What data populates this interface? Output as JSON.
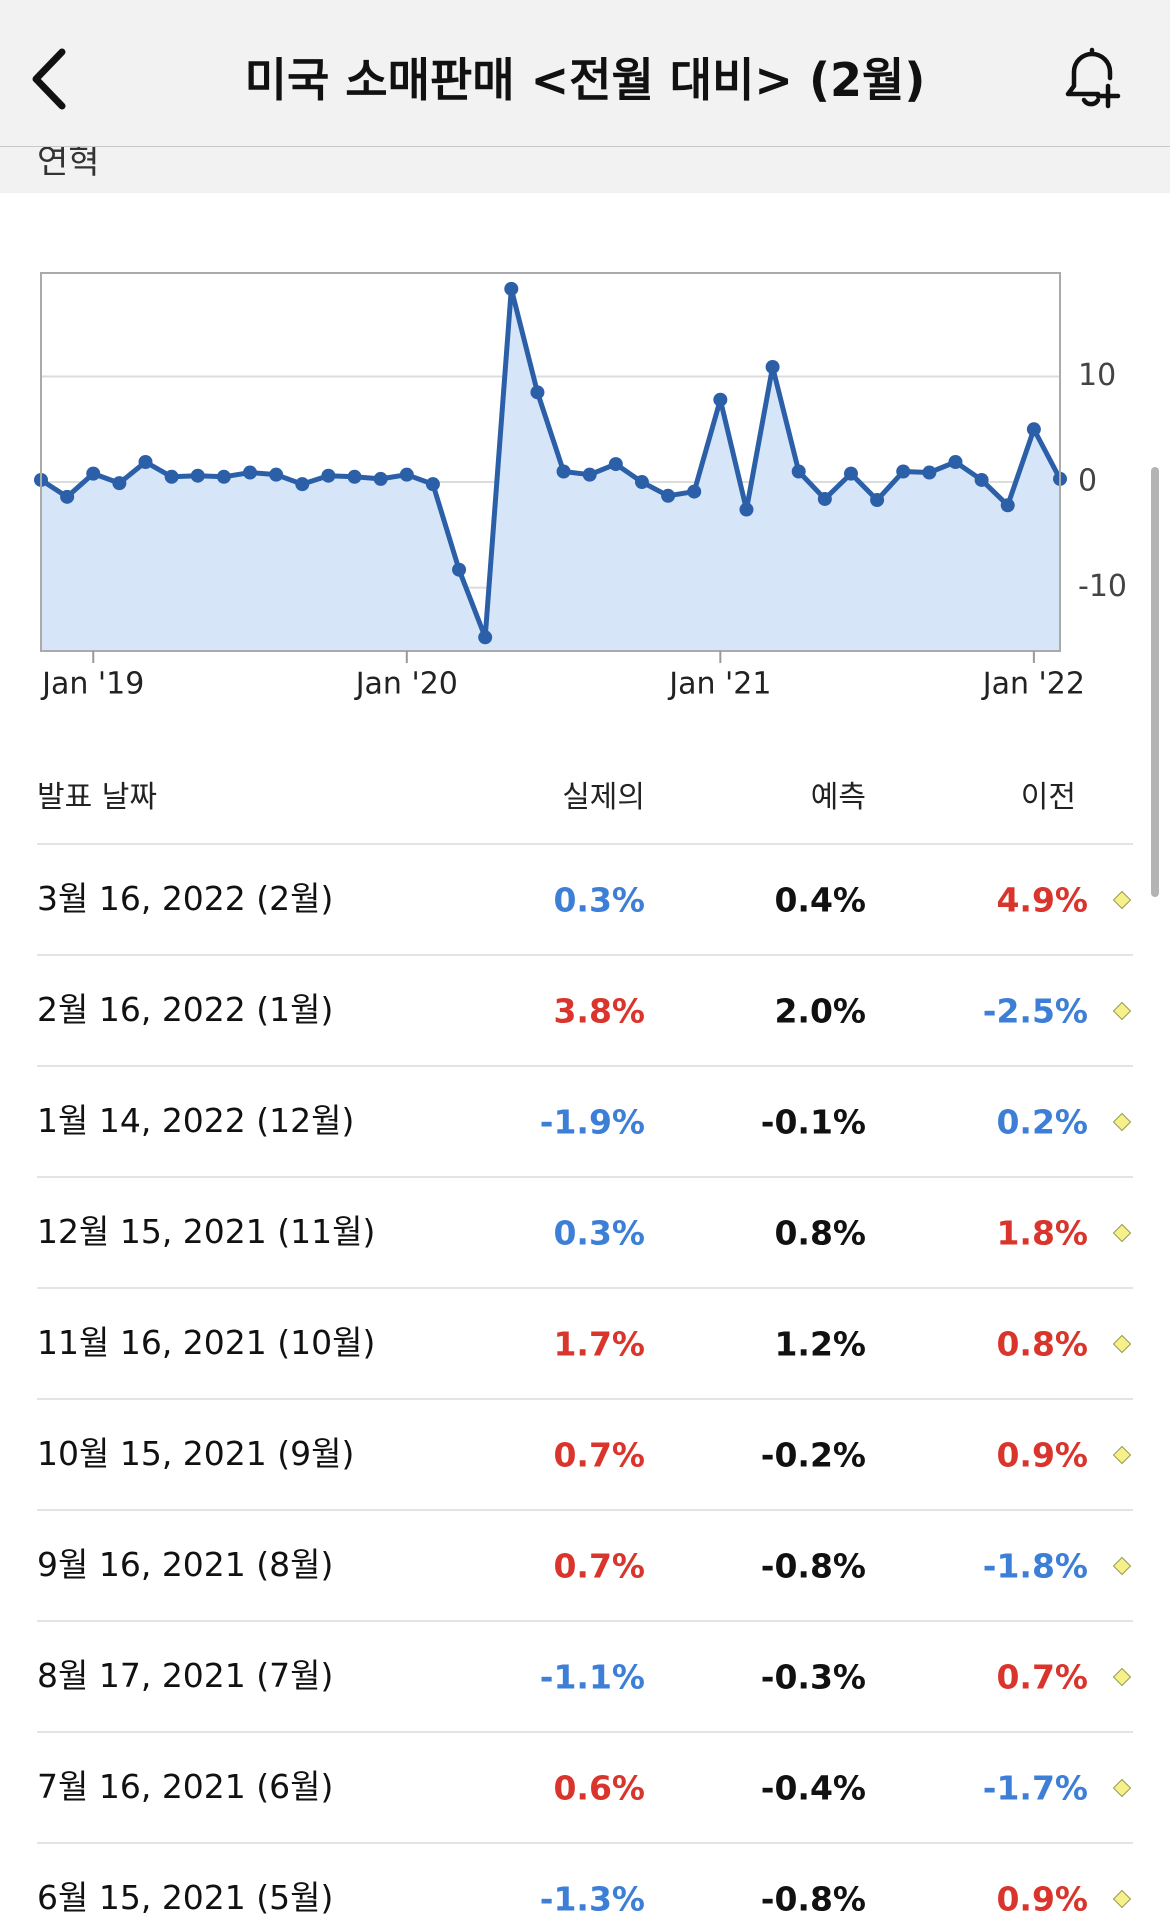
{
  "header": {
    "title": "미국 소매판매 <전월 대비> (2월)"
  },
  "section": {
    "title": "연혁"
  },
  "chart_data": {
    "type": "line",
    "x": [
      "2018-11",
      "2018-12",
      "2019-01",
      "2019-02",
      "2019-03",
      "2019-04",
      "2019-05",
      "2019-06",
      "2019-07",
      "2019-08",
      "2019-09",
      "2019-10",
      "2019-11",
      "2019-12",
      "2020-01",
      "2020-02",
      "2020-03",
      "2020-04",
      "2020-05",
      "2020-06",
      "2020-07",
      "2020-08",
      "2020-09",
      "2020-10",
      "2020-11",
      "2020-12",
      "2021-01",
      "2021-02",
      "2021-03",
      "2021-04",
      "2021-05",
      "2021-06",
      "2021-07",
      "2021-08",
      "2021-09",
      "2021-10",
      "2021-11",
      "2021-12",
      "2022-01",
      "2022-02"
    ],
    "values": [
      0.2,
      -1.4,
      0.8,
      -0.1,
      1.9,
      0.5,
      0.6,
      0.5,
      0.9,
      0.7,
      -0.2,
      0.6,
      0.5,
      0.3,
      0.7,
      -0.2,
      -8.3,
      -14.7,
      18.3,
      8.5,
      1.0,
      0.7,
      1.7,
      0.0,
      -1.3,
      -0.9,
      7.8,
      -2.6,
      10.9,
      1.0,
      -1.6,
      0.8,
      -1.7,
      1.0,
      0.9,
      1.9,
      0.2,
      -2.2,
      5.0,
      0.3
    ],
    "color": "#2b5fa8",
    "fill_color": "#d6e5f8",
    "xlim": [
      "2018-11",
      "2022-02"
    ],
    "xticks": [
      {
        "value": "2019-01",
        "label": "Jan '19"
      },
      {
        "value": "2020-01",
        "label": "Jan '20"
      },
      {
        "value": "2021-01",
        "label": "Jan '21"
      },
      {
        "value": "2022-01",
        "label": "Jan '22"
      }
    ],
    "ylim": [
      -16,
      19.8
    ],
    "yticks": [
      -10,
      0,
      10
    ],
    "grid": true
  },
  "table": {
    "columns": [
      "발표 날짜",
      "실제의",
      "예측",
      "이전"
    ],
    "rows": [
      {
        "date": "3월 16, 2022 (2월)",
        "actual": "0.3%",
        "actual_color": "#3d7fd6",
        "forecast": "0.4%",
        "previous": "4.9%",
        "previous_color": "#d9352c"
      },
      {
        "date": "2월 16, 2022 (1월)",
        "actual": "3.8%",
        "actual_color": "#d9352c",
        "forecast": "2.0%",
        "previous": "-2.5%",
        "previous_color": "#3d7fd6"
      },
      {
        "date": "1월 14, 2022 (12월)",
        "actual": "-1.9%",
        "actual_color": "#3d7fd6",
        "forecast": "-0.1%",
        "previous": "0.2%",
        "previous_color": "#3d7fd6"
      },
      {
        "date": "12월 15, 2021 (11월)",
        "actual": "0.3%",
        "actual_color": "#3d7fd6",
        "forecast": "0.8%",
        "previous": "1.8%",
        "previous_color": "#d9352c"
      },
      {
        "date": "11월 16, 2021 (10월)",
        "actual": "1.7%",
        "actual_color": "#d9352c",
        "forecast": "1.2%",
        "previous": "0.8%",
        "previous_color": "#d9352c"
      },
      {
        "date": "10월 15, 2021 (9월)",
        "actual": "0.7%",
        "actual_color": "#d9352c",
        "forecast": "-0.2%",
        "previous": "0.9%",
        "previous_color": "#d9352c"
      },
      {
        "date": "9월 16, 2021 (8월)",
        "actual": "0.7%",
        "actual_color": "#d9352c",
        "forecast": "-0.8%",
        "previous": "-1.8%",
        "previous_color": "#3d7fd6"
      },
      {
        "date": "8월 17, 2021 (7월)",
        "actual": "-1.1%",
        "actual_color": "#3d7fd6",
        "forecast": "-0.3%",
        "previous": "0.7%",
        "previous_color": "#d9352c"
      },
      {
        "date": "7월 16, 2021 (6월)",
        "actual": "0.6%",
        "actual_color": "#d9352c",
        "forecast": "-0.4%",
        "previous": "-1.7%",
        "previous_color": "#3d7fd6"
      },
      {
        "date": "6월 15, 2021 (5월)",
        "actual": "-1.3%",
        "actual_color": "#3d7fd6",
        "forecast": "-0.8%",
        "previous": "0.9%",
        "previous_color": "#d9352c"
      }
    ]
  }
}
